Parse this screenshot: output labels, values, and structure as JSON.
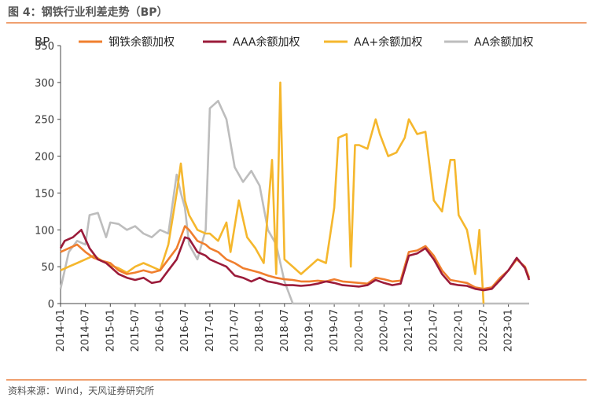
{
  "figure": {
    "title": "图 4：钢铁行业利差走势（BP）",
    "source": "资料来源：Wind，天风证券研究所"
  },
  "chart_data": {
    "type": "line",
    "ylabel": "BP",
    "ylim": [
      0,
      350
    ],
    "yticks": [
      0,
      50,
      100,
      150,
      200,
      250,
      300,
      350
    ],
    "xlim": [
      "2014-01",
      "2023-06"
    ],
    "xticks": [
      "2014-01",
      "2014-07",
      "2015-01",
      "2015-07",
      "2016-01",
      "2016-07",
      "2017-01",
      "2017-07",
      "2018-01",
      "2018-07",
      "2019-01",
      "2019-07",
      "2020-01",
      "2020-07",
      "2021-01",
      "2021-07",
      "2022-01",
      "2022-07",
      "2023-01"
    ],
    "legend_position": "top",
    "grid": false,
    "series": [
      {
        "name": "钢铁余额加权",
        "color": "#f07f2e",
        "points": [
          [
            "2014-01",
            70
          ],
          [
            "2014-03",
            75
          ],
          [
            "2014-05",
            80
          ],
          [
            "2014-07",
            70
          ],
          [
            "2014-09",
            62
          ],
          [
            "2014-11",
            58
          ],
          [
            "2015-01",
            55
          ],
          [
            "2015-03",
            45
          ],
          [
            "2015-05",
            40
          ],
          [
            "2015-07",
            42
          ],
          [
            "2015-09",
            45
          ],
          [
            "2015-11",
            42
          ],
          [
            "2016-01",
            45
          ],
          [
            "2016-03",
            60
          ],
          [
            "2016-05",
            75
          ],
          [
            "2016-07",
            105
          ],
          [
            "2016-08",
            100
          ],
          [
            "2016-10",
            85
          ],
          [
            "2016-12",
            80
          ],
          [
            "2017-01",
            75
          ],
          [
            "2017-03",
            70
          ],
          [
            "2017-05",
            60
          ],
          [
            "2017-07",
            55
          ],
          [
            "2017-09",
            48
          ],
          [
            "2017-11",
            45
          ],
          [
            "2018-01",
            42
          ],
          [
            "2018-03",
            38
          ],
          [
            "2018-05",
            35
          ],
          [
            "2018-07",
            33
          ],
          [
            "2018-09",
            32
          ],
          [
            "2018-11",
            30
          ],
          [
            "2019-01",
            30
          ],
          [
            "2019-03",
            31
          ],
          [
            "2019-05",
            30
          ],
          [
            "2019-07",
            33
          ],
          [
            "2019-09",
            30
          ],
          [
            "2019-11",
            29
          ],
          [
            "2020-01",
            28
          ],
          [
            "2020-03",
            27
          ],
          [
            "2020-05",
            35
          ],
          [
            "2020-07",
            33
          ],
          [
            "2020-09",
            30
          ],
          [
            "2020-11",
            31
          ],
          [
            "2021-01",
            70
          ],
          [
            "2021-03",
            72
          ],
          [
            "2021-05",
            78
          ],
          [
            "2021-07",
            65
          ],
          [
            "2021-09",
            45
          ],
          [
            "2021-11",
            32
          ],
          [
            "2022-01",
            30
          ],
          [
            "2022-03",
            28
          ],
          [
            "2022-05",
            22
          ],
          [
            "2022-07",
            20
          ],
          [
            "2022-09",
            22
          ],
          [
            "2022-11",
            35
          ],
          [
            "2023-01",
            45
          ],
          [
            "2023-03",
            60
          ],
          [
            "2023-05",
            50
          ],
          [
            "2023-06",
            35
          ]
        ]
      },
      {
        "name": "AAA余额加权",
        "color": "#9b1b3a",
        "points": [
          [
            "2014-01",
            75
          ],
          [
            "2014-02",
            85
          ],
          [
            "2014-04",
            90
          ],
          [
            "2014-06",
            100
          ],
          [
            "2014-08",
            75
          ],
          [
            "2014-10",
            60
          ],
          [
            "2014-12",
            55
          ],
          [
            "2015-01",
            50
          ],
          [
            "2015-03",
            40
          ],
          [
            "2015-05",
            35
          ],
          [
            "2015-07",
            32
          ],
          [
            "2015-09",
            35
          ],
          [
            "2015-11",
            28
          ],
          [
            "2016-01",
            30
          ],
          [
            "2016-03",
            45
          ],
          [
            "2016-05",
            60
          ],
          [
            "2016-07",
            90
          ],
          [
            "2016-08",
            88
          ],
          [
            "2016-10",
            70
          ],
          [
            "2016-12",
            65
          ],
          [
            "2017-01",
            60
          ],
          [
            "2017-03",
            55
          ],
          [
            "2017-05",
            50
          ],
          [
            "2017-07",
            38
          ],
          [
            "2017-09",
            35
          ],
          [
            "2017-11",
            30
          ],
          [
            "2018-01",
            35
          ],
          [
            "2018-03",
            30
          ],
          [
            "2018-05",
            28
          ],
          [
            "2018-07",
            25
          ],
          [
            "2018-09",
            25
          ],
          [
            "2018-11",
            24
          ],
          [
            "2019-01",
            25
          ],
          [
            "2019-03",
            27
          ],
          [
            "2019-05",
            30
          ],
          [
            "2019-07",
            28
          ],
          [
            "2019-09",
            25
          ],
          [
            "2019-11",
            24
          ],
          [
            "2020-01",
            23
          ],
          [
            "2020-03",
            25
          ],
          [
            "2020-05",
            32
          ],
          [
            "2020-07",
            28
          ],
          [
            "2020-09",
            25
          ],
          [
            "2020-11",
            27
          ],
          [
            "2021-01",
            65
          ],
          [
            "2021-03",
            68
          ],
          [
            "2021-05",
            75
          ],
          [
            "2021-07",
            60
          ],
          [
            "2021-09",
            40
          ],
          [
            "2021-11",
            27
          ],
          [
            "2022-01",
            25
          ],
          [
            "2022-03",
            24
          ],
          [
            "2022-05",
            20
          ],
          [
            "2022-07",
            18
          ],
          [
            "2022-09",
            20
          ],
          [
            "2022-11",
            32
          ],
          [
            "2023-01",
            45
          ],
          [
            "2023-03",
            62
          ],
          [
            "2023-05",
            48
          ],
          [
            "2023-06",
            32
          ]
        ]
      },
      {
        "name": "AA+余额加权",
        "color": "#f5b72d",
        "points": [
          [
            "2014-01",
            45
          ],
          [
            "2014-03",
            50
          ],
          [
            "2014-05",
            55
          ],
          [
            "2014-07",
            60
          ],
          [
            "2014-09",
            65
          ],
          [
            "2014-11",
            58
          ],
          [
            "2015-01",
            52
          ],
          [
            "2015-03",
            48
          ],
          [
            "2015-05",
            42
          ],
          [
            "2015-07",
            50
          ],
          [
            "2015-09",
            55
          ],
          [
            "2015-11",
            50
          ],
          [
            "2016-01",
            45
          ],
          [
            "2016-03",
            80
          ],
          [
            "2016-05",
            150
          ],
          [
            "2016-06",
            190
          ],
          [
            "2016-07",
            140
          ],
          [
            "2016-08",
            120
          ],
          [
            "2016-10",
            100
          ],
          [
            "2016-12",
            95
          ],
          [
            "2017-01",
            95
          ],
          [
            "2017-03",
            85
          ],
          [
            "2017-05",
            110
          ],
          [
            "2017-06",
            70
          ],
          [
            "2017-08",
            140
          ],
          [
            "2017-10",
            90
          ],
          [
            "2017-12",
            75
          ],
          [
            "2018-02",
            55
          ],
          [
            "2018-04",
            195
          ],
          [
            "2018-05",
            40
          ],
          [
            "2018-06",
            300
          ],
          [
            "2018-07",
            60
          ],
          [
            "2018-09",
            50
          ],
          [
            "2018-11",
            40
          ],
          [
            "2019-01",
            50
          ],
          [
            "2019-03",
            60
          ],
          [
            "2019-05",
            55
          ],
          [
            "2019-07",
            130
          ],
          [
            "2019-08",
            225
          ],
          [
            "2019-10",
            230
          ],
          [
            "2019-11",
            50
          ],
          [
            "2019-12",
            215
          ],
          [
            "2020-01",
            215
          ],
          [
            "2020-03",
            210
          ],
          [
            "2020-05",
            250
          ],
          [
            "2020-06",
            230
          ],
          [
            "2020-08",
            200
          ],
          [
            "2020-10",
            205
          ],
          [
            "2020-12",
            225
          ],
          [
            "2021-01",
            250
          ],
          [
            "2021-03",
            230
          ],
          [
            "2021-05",
            233
          ],
          [
            "2021-07",
            140
          ],
          [
            "2021-09",
            125
          ],
          [
            "2021-11",
            195
          ],
          [
            "2021-12",
            195
          ],
          [
            "2022-01",
            120
          ],
          [
            "2022-03",
            100
          ],
          [
            "2022-05",
            40
          ],
          [
            "2022-06",
            100
          ],
          [
            "2022-07",
            0
          ]
        ]
      },
      {
        "name": "AA余额加权",
        "color": "#bdbdbd",
        "points": [
          [
            "2014-01",
            20
          ],
          [
            "2014-03",
            70
          ],
          [
            "2014-05",
            85
          ],
          [
            "2014-07",
            80
          ],
          [
            "2014-08",
            120
          ],
          [
            "2014-10",
            123
          ],
          [
            "2014-12",
            90
          ],
          [
            "2015-01",
            110
          ],
          [
            "2015-03",
            108
          ],
          [
            "2015-05",
            100
          ],
          [
            "2015-07",
            105
          ],
          [
            "2015-09",
            95
          ],
          [
            "2015-11",
            90
          ],
          [
            "2016-01",
            100
          ],
          [
            "2016-03",
            95
          ],
          [
            "2016-05",
            175
          ],
          [
            "2016-06",
            150
          ],
          [
            "2016-07",
            130
          ],
          [
            "2016-08",
            80
          ],
          [
            "2016-10",
            60
          ],
          [
            "2016-12",
            100
          ],
          [
            "2017-01",
            265
          ],
          [
            "2017-03",
            275
          ],
          [
            "2017-05",
            250
          ],
          [
            "2017-07",
            185
          ],
          [
            "2017-09",
            165
          ],
          [
            "2017-11",
            180
          ],
          [
            "2018-01",
            160
          ],
          [
            "2018-03",
            100
          ],
          [
            "2018-05",
            80
          ],
          [
            "2018-07",
            30
          ],
          [
            "2018-09",
            0
          ],
          [
            "2023-06",
            0
          ]
        ]
      }
    ]
  }
}
